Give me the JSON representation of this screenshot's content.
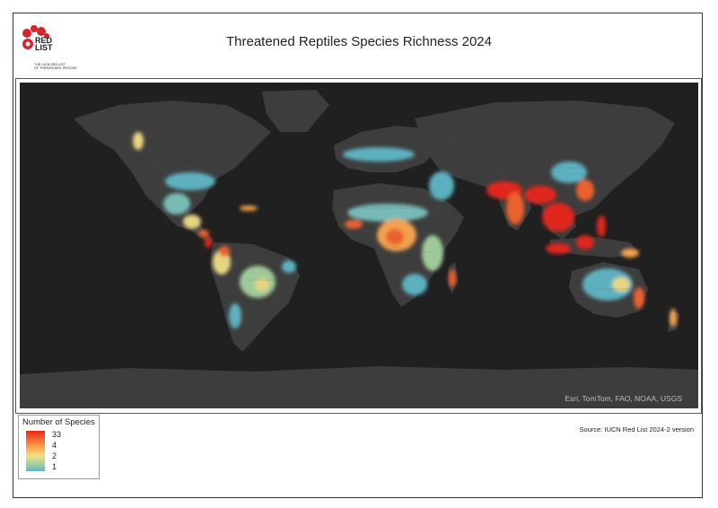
{
  "map": {
    "title": "Threatened Reptiles Species Richness 2024",
    "attribution": "Esri, TomTom, FAO, NOAA, USGS",
    "source": "Source: IUCN Red List 2024-2 version"
  },
  "logo": {
    "text_line1": "RED",
    "text_line2": "LIST",
    "tagline_line1": "THE IUCN RED LIST",
    "tagline_line2": "OF THREATENED SPECIES"
  },
  "legend": {
    "title": "Number of Species",
    "labels": [
      "33",
      "4",
      "2",
      "1"
    ],
    "gradient_colors": [
      "#e8281b",
      "#f5642e",
      "#fca750",
      "#f2de85",
      "#a4d29e",
      "#5fb8c7"
    ]
  },
  "colors": {
    "ocean": "#202020",
    "land": "#3d3d3d",
    "low": "#5fb8c7",
    "mid": "#f2de85",
    "high": "#e8281b"
  }
}
